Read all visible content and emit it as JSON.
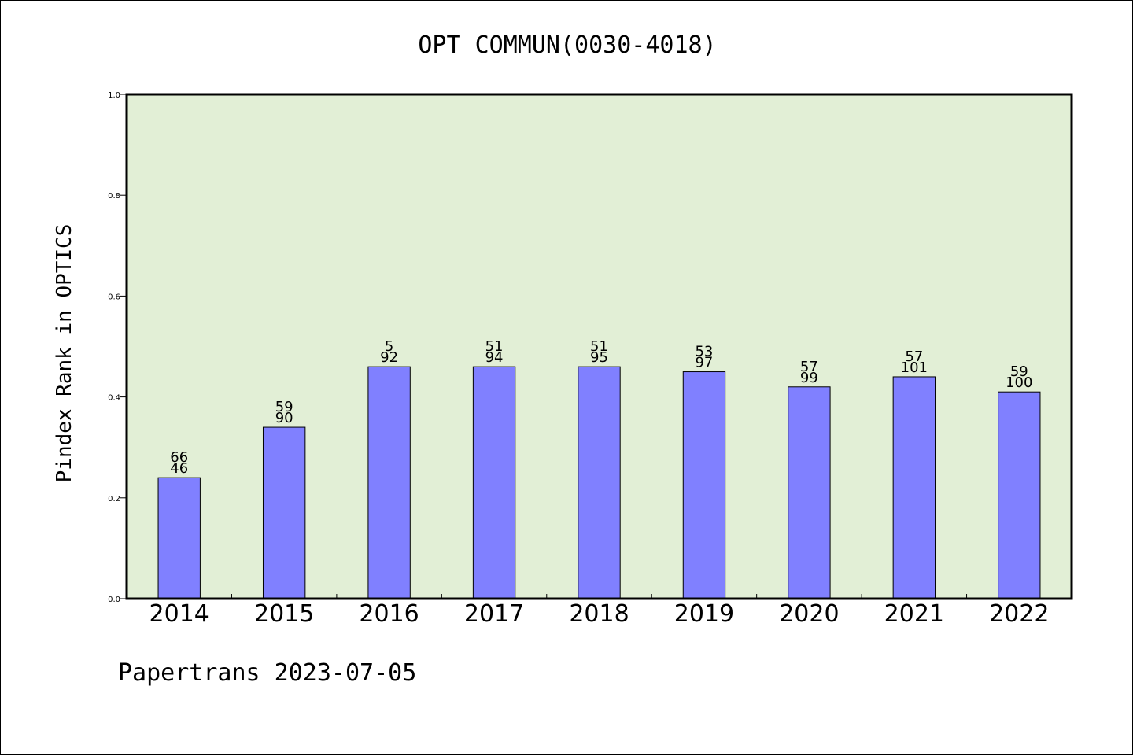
{
  "chart_data": {
    "type": "bar",
    "title": "OPT COMMUN(0030-4018)",
    "xlabel": "",
    "ylabel": "Pindex Rank in OPTICS",
    "footer": "Papertrans 2023-07-05",
    "ylim": [
      0,
      1.0
    ],
    "yticks": [
      "0.0",
      "0.2",
      "0.4",
      "0.6",
      "0.8",
      "1.0"
    ],
    "categories": [
      "2014",
      "2015",
      "2016",
      "2017",
      "2018",
      "2019",
      "2020",
      "2021",
      "2022"
    ],
    "values": [
      0.24,
      0.34,
      0.46,
      0.46,
      0.46,
      0.45,
      0.42,
      0.44,
      0.41
    ],
    "rank": [
      "66",
      "59",
      "5",
      "51",
      "51",
      "53",
      "57",
      "57",
      "59"
    ],
    "total": [
      "46",
      "90",
      "92",
      "94",
      "95",
      "97",
      "99",
      "101",
      "100"
    ],
    "grid": false,
    "plot_background": "#e2efd6",
    "bar_color": "#8080ff"
  }
}
